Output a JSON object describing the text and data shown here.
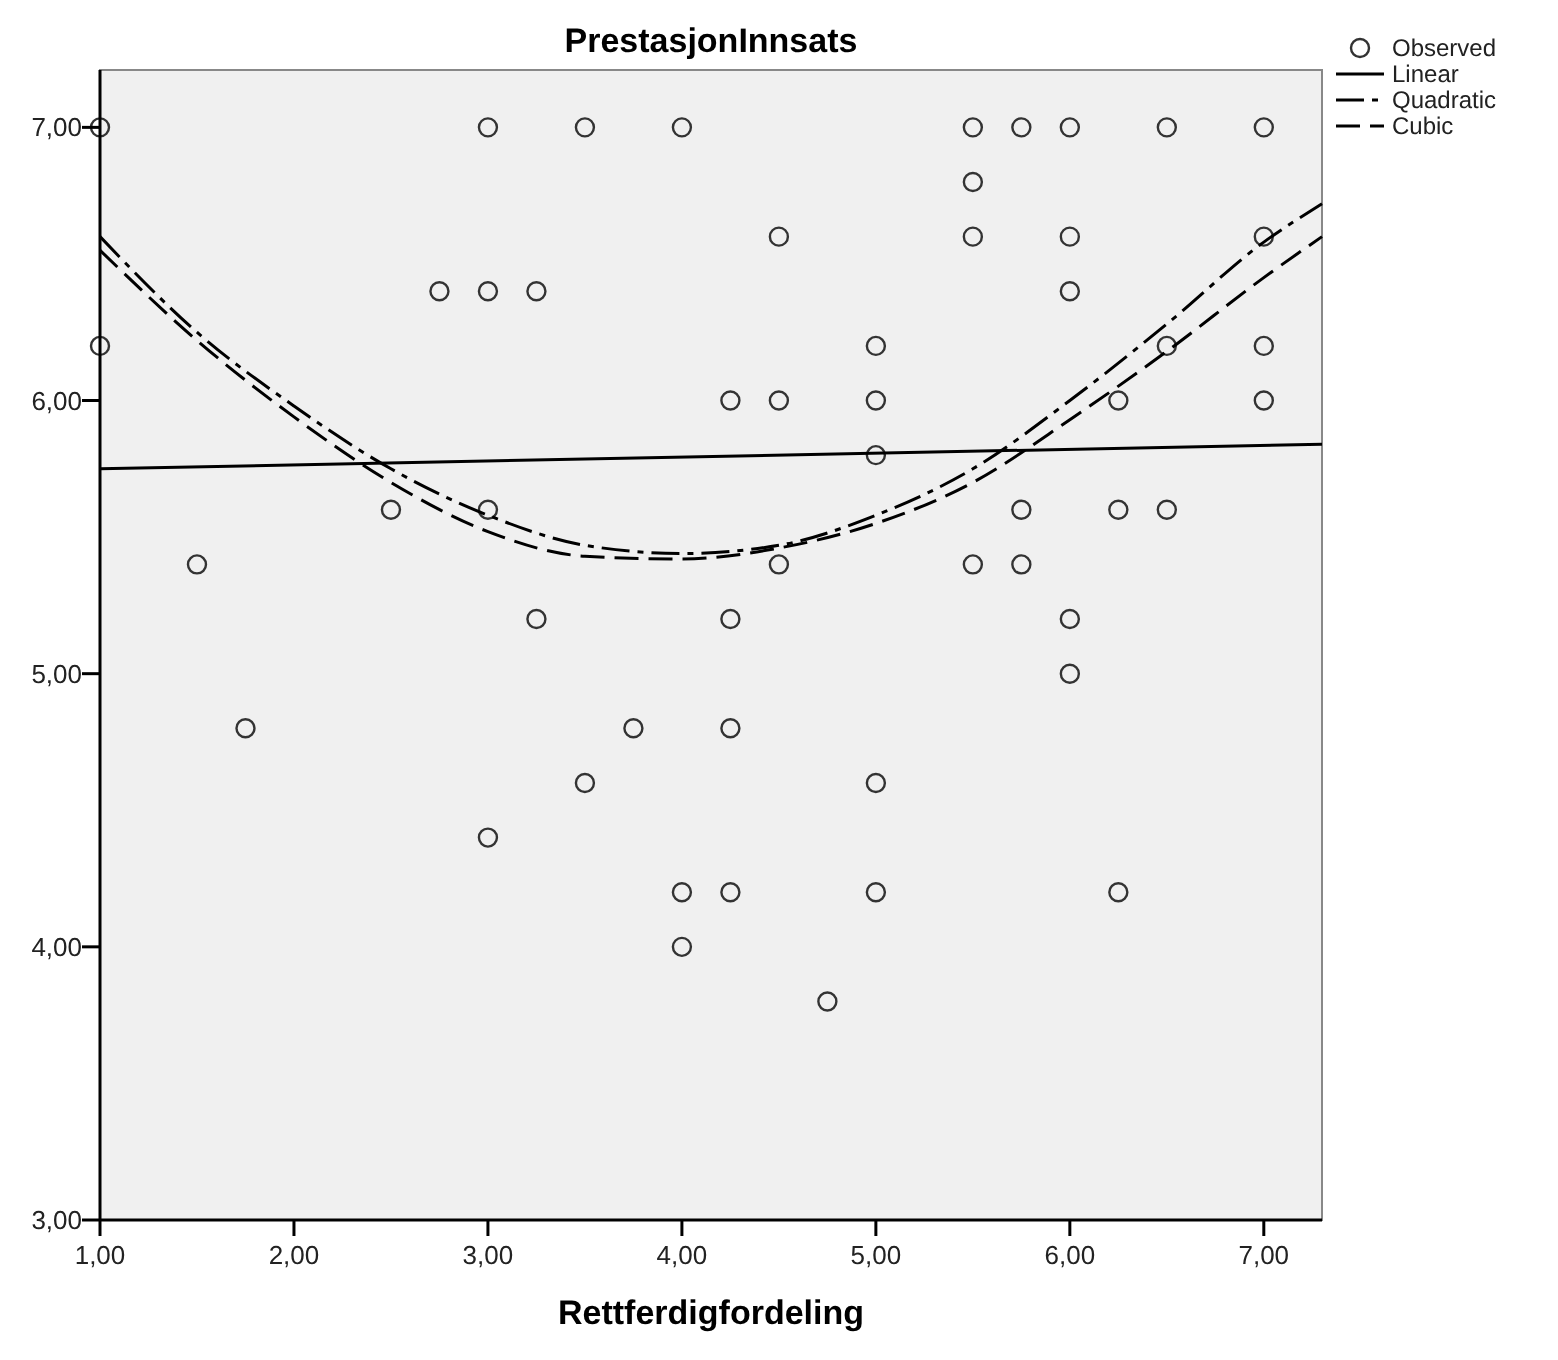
{
  "chart_data": {
    "type": "scatter",
    "title": "PrestasjonInnsats",
    "xlabel": "Rettferdigfordeling",
    "xlim": [
      1,
      7.3
    ],
    "ylim": [
      3,
      7.21
    ],
    "xticks": [
      {
        "value": 1,
        "label": "1,00"
      },
      {
        "value": 2,
        "label": "2,00"
      },
      {
        "value": 3,
        "label": "3,00"
      },
      {
        "value": 4,
        "label": "4,00"
      },
      {
        "value": 5,
        "label": "5,00"
      },
      {
        "value": 6,
        "label": "6,00"
      },
      {
        "value": 7,
        "label": "7,00"
      }
    ],
    "yticks": [
      {
        "value": 3,
        "label": "3,00"
      },
      {
        "value": 4,
        "label": "4,00"
      },
      {
        "value": 5,
        "label": "5,00"
      },
      {
        "value": 6,
        "label": "6,00"
      },
      {
        "value": 7,
        "label": "7,00"
      }
    ],
    "grid": false,
    "legend": "top right",
    "series": [
      {
        "name": "Observed",
        "color": "#333333",
        "marker": "circle",
        "x": [
          1,
          1,
          1.5,
          1.75,
          2.5,
          2.75,
          3,
          3,
          3,
          3,
          3.25,
          3.25,
          3.5,
          3.5,
          3.75,
          4,
          4,
          4,
          4.25,
          4.25,
          4.25,
          4.25,
          4.5,
          4.5,
          4.5,
          4.75,
          5,
          5,
          5,
          5,
          5,
          5.5,
          5.5,
          5.5,
          5.5,
          5.75,
          5.75,
          5.75,
          6,
          6,
          6,
          6,
          6,
          6.25,
          6.25,
          6.25,
          6.5,
          6.5,
          6.5,
          7,
          7,
          7,
          7
        ],
        "values": [
          7,
          6.2,
          5.4,
          4.8,
          5.6,
          6.4,
          7,
          6.4,
          5.6,
          4.4,
          6.4,
          5.2,
          7,
          4.6,
          4.8,
          7,
          4.2,
          4,
          6,
          5.2,
          4.8,
          4.2,
          6.6,
          6,
          5.4,
          3.8,
          6.2,
          6,
          5.8,
          4.6,
          4.2,
          7,
          6.8,
          6.6,
          5.4,
          7,
          5.6,
          5.4,
          7,
          6.6,
          6.4,
          5.2,
          5,
          6,
          5.6,
          4.2,
          7,
          6.2,
          5.6,
          7,
          6.6,
          6.2,
          6
        ]
      },
      {
        "name": "Linear",
        "type": "line",
        "color": "#000000",
        "line_style": "solid",
        "x": [
          1,
          7.3
        ],
        "values": [
          5.75,
          5.84
        ]
      },
      {
        "name": "Quadratic",
        "type": "line",
        "color": "#000000",
        "line_style": "dashed",
        "x": [
          1,
          1.5,
          2,
          2.5,
          3,
          3.5,
          4,
          4.5,
          5,
          5.5,
          6,
          6.5,
          7,
          7.3
        ],
        "values": [
          6.6,
          6.25,
          5.98,
          5.75,
          5.58,
          5.47,
          5.44,
          5.47,
          5.58,
          5.75,
          6,
          6.28,
          6.58,
          6.72
        ]
      },
      {
        "name": "Cubic",
        "type": "line",
        "color": "#000000",
        "line_style": "dashed",
        "x": [
          1,
          1.5,
          2,
          2.5,
          3,
          3.5,
          4,
          4.5,
          5,
          5.5,
          6,
          6.5,
          7,
          7.3
        ],
        "values": [
          6.55,
          6.22,
          5.94,
          5.7,
          5.52,
          5.43,
          5.42,
          5.46,
          5.55,
          5.7,
          5.93,
          6.18,
          6.45,
          6.6
        ]
      }
    ]
  }
}
